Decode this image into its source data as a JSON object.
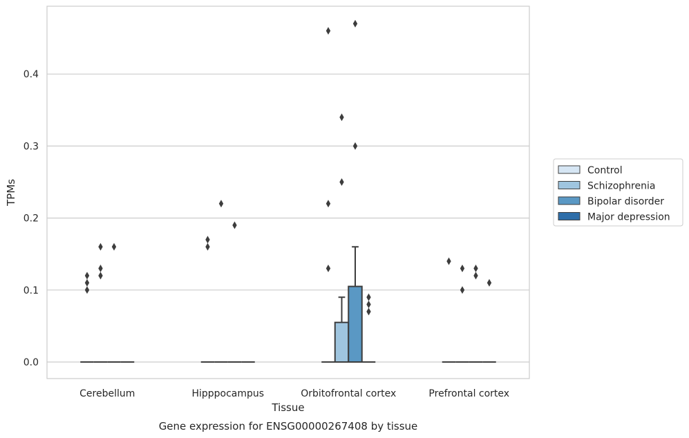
{
  "chart_data": {
    "type": "box",
    "caption": "Gene expression for ENSG00000267408 by tissue",
    "xlabel": "Tissue",
    "ylabel": "TPMs",
    "ylim": [
      -0.023,
      0.495
    ],
    "yticks": [
      0.0,
      0.1,
      0.2,
      0.3,
      0.4
    ],
    "ytick_labels": [
      "0.0",
      "0.1",
      "0.2",
      "0.3",
      "0.4"
    ],
    "grid": "horizontal",
    "legend_position": "right",
    "categories": [
      "Cerebellum",
      "Hipppocampus",
      "Orbitofrontal cortex",
      "Prefrontal cortex"
    ],
    "series": [
      {
        "name": "Control",
        "color": "#d6e6f4",
        "boxes": [
          {
            "q1": 0,
            "median": 0,
            "q3": 0,
            "whisker_low": 0,
            "whisker_high": 0,
            "outliers": [
              0.1,
              0.11,
              0.12
            ]
          },
          {
            "q1": 0,
            "median": 0,
            "q3": 0,
            "whisker_low": 0,
            "whisker_high": 0,
            "outliers": [
              0.16,
              0.17
            ]
          },
          {
            "q1": 0,
            "median": 0,
            "q3": 0,
            "whisker_low": 0,
            "whisker_high": 0,
            "outliers": [
              0.13,
              0.22,
              0.46
            ]
          },
          {
            "q1": 0,
            "median": 0,
            "q3": 0,
            "whisker_low": 0,
            "whisker_high": 0,
            "outliers": [
              0.14
            ]
          }
        ]
      },
      {
        "name": "Schizophrenia",
        "color": "#9fc5df",
        "boxes": [
          {
            "q1": 0,
            "median": 0,
            "q3": 0,
            "whisker_low": 0,
            "whisker_high": 0,
            "outliers": [
              0.12,
              0.13,
              0.16
            ]
          },
          {
            "q1": 0,
            "median": 0,
            "q3": 0,
            "whisker_low": 0,
            "whisker_high": 0,
            "outliers": [
              0.22
            ]
          },
          {
            "q1": 0,
            "median": 0,
            "q3": 0.055,
            "whisker_low": 0,
            "whisker_high": 0.09,
            "outliers": [
              0.25,
              0.34
            ]
          },
          {
            "q1": 0,
            "median": 0,
            "q3": 0,
            "whisker_low": 0,
            "whisker_high": 0,
            "outliers": [
              0.1,
              0.13
            ]
          }
        ]
      },
      {
        "name": "Bipolar disorder",
        "color": "#5a98c4",
        "boxes": [
          {
            "q1": 0,
            "median": 0,
            "q3": 0,
            "whisker_low": 0,
            "whisker_high": 0,
            "outliers": [
              0.16
            ]
          },
          {
            "q1": 0,
            "median": 0,
            "q3": 0,
            "whisker_low": 0,
            "whisker_high": 0,
            "outliers": [
              0.19
            ]
          },
          {
            "q1": 0,
            "median": 0,
            "q3": 0.105,
            "whisker_low": 0,
            "whisker_high": 0.16,
            "outliers": [
              0.3,
              0.47
            ]
          },
          {
            "q1": 0,
            "median": 0,
            "q3": 0,
            "whisker_low": 0,
            "whisker_high": 0,
            "outliers": [
              0.12,
              0.13
            ]
          }
        ]
      },
      {
        "name": "Major depression",
        "color": "#2e6ea9",
        "boxes": [
          {
            "q1": 0,
            "median": 0,
            "q3": 0,
            "whisker_low": 0,
            "whisker_high": 0,
            "outliers": []
          },
          {
            "q1": 0,
            "median": 0,
            "q3": 0,
            "whisker_low": 0,
            "whisker_high": 0,
            "outliers": []
          },
          {
            "q1": 0,
            "median": 0,
            "q3": 0,
            "whisker_low": 0,
            "whisker_high": 0,
            "outliers": [
              0.07,
              0.08,
              0.09
            ]
          },
          {
            "q1": 0,
            "median": 0,
            "q3": 0,
            "whisker_low": 0,
            "whisker_high": 0,
            "outliers": [
              0.11
            ]
          }
        ]
      }
    ]
  }
}
